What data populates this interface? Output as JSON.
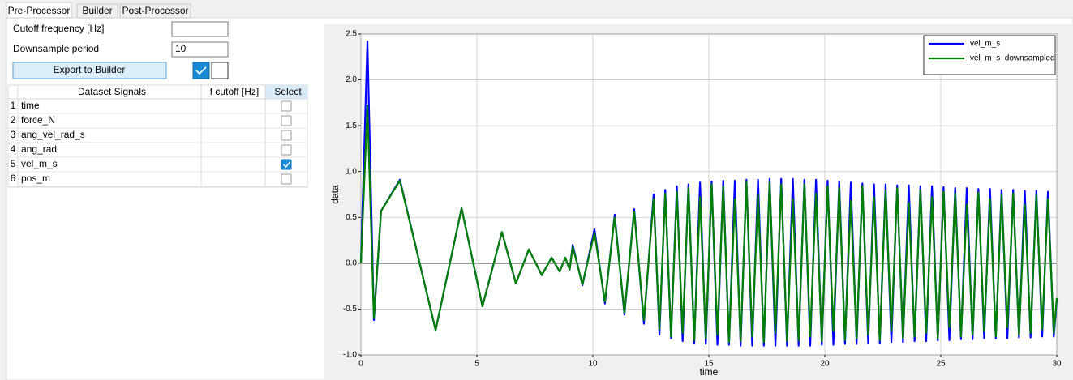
{
  "tabs": [
    "Pre-Processor",
    "Builder",
    "Post-Processor"
  ],
  "form": {
    "cutoff_label": "Cutoff frequency [Hz]",
    "downsample_label": "Downsample period",
    "downsample_value": "10",
    "export_button": "Export to Builder"
  },
  "table": {
    "headers": [
      "Dataset Signals",
      "f cutoff [Hz]",
      "Select"
    ],
    "rows": [
      {
        "index": 1,
        "signal": "time",
        "selected": false
      },
      {
        "index": 2,
        "signal": "force_N",
        "selected": false
      },
      {
        "index": 3,
        "signal": "ang_vel_rad_s",
        "selected": false
      },
      {
        "index": 4,
        "signal": "ang_rad",
        "selected": false
      },
      {
        "index": 5,
        "signal": "vel_m_s",
        "selected": true
      },
      {
        "index": 6,
        "signal": "pos_m",
        "selected": false
      }
    ]
  },
  "chart_data": {
    "type": "line",
    "xlabel": "time",
    "ylabel": "data",
    "xlim": [
      0,
      30
    ],
    "ylim": [
      -1.0,
      2.5
    ],
    "xticks": [
      0,
      5,
      10,
      15,
      20,
      25,
      30
    ],
    "yticks": [
      {
        "value": -1.0,
        "label": "-1.0"
      },
      -0.5,
      {
        "value": 0,
        "label": "0.0"
      },
      0.5,
      {
        "value": 1.0,
        "label": "1.0"
      },
      1.5,
      {
        "value": 2.0,
        "label": "2.0"
      },
      2.5
    ],
    "grid": true,
    "legend": "upper right",
    "x": [
      0,
      0.28,
      0.56,
      0.87,
      1.68,
      3.22,
      4.34,
      5.24,
      6.08,
      6.68,
      7.24,
      7.8,
      8.22,
      8.57,
      8.81,
      9.0,
      9.13,
      9.55,
      10.07,
      10.52,
      10.94,
      11.36,
      11.78,
      12.2,
      12.62,
      12.87,
      13.12,
      13.37,
      13.62,
      13.87,
      14.12,
      14.37,
      14.62,
      14.87,
      15.12,
      15.37,
      15.62,
      15.87,
      16.12,
      16.37,
      16.62,
      16.87,
      17.12,
      17.37,
      17.62,
      17.87,
      18.12,
      18.37,
      18.62,
      18.87,
      19.12,
      19.37,
      19.62,
      19.87,
      20.12,
      20.37,
      20.62,
      20.87,
      21.12,
      21.37,
      21.62,
      21.87,
      22.12,
      22.37,
      22.62,
      22.87,
      23.12,
      23.37,
      23.62,
      23.87,
      24.12,
      24.37,
      24.62,
      24.87,
      25.12,
      25.37,
      25.62,
      25.87,
      26.12,
      26.37,
      26.62,
      26.87,
      27.12,
      27.37,
      27.62,
      27.87,
      28.12,
      28.37,
      28.62,
      28.87,
      29.12,
      29.37,
      29.62,
      29.87,
      30
    ],
    "series": [
      {
        "name": "vel_m_s",
        "color": "#0000ff",
        "values": [
          0,
          2.42,
          -0.62,
          0.57,
          0.91,
          -0.73,
          0.6,
          -0.47,
          0.34,
          -0.22,
          0.15,
          -0.13,
          0.06,
          -0.09,
          0.06,
          -0.07,
          0.2,
          -0.24,
          0.37,
          -0.44,
          0.53,
          -0.56,
          0.59,
          -0.66,
          0.75,
          -0.78,
          0.8,
          -0.82,
          0.84,
          -0.85,
          0.86,
          -0.87,
          0.88,
          -0.88,
          0.89,
          -0.89,
          0.9,
          -0.89,
          0.9,
          -0.9,
          0.91,
          -0.9,
          0.91,
          -0.9,
          0.92,
          -0.9,
          0.92,
          -0.9,
          0.92,
          -0.9,
          0.91,
          -0.9,
          0.91,
          -0.89,
          0.9,
          -0.89,
          0.89,
          -0.88,
          0.88,
          -0.88,
          0.87,
          -0.87,
          0.86,
          -0.87,
          0.86,
          -0.86,
          0.85,
          -0.86,
          0.85,
          -0.85,
          0.84,
          -0.85,
          0.84,
          -0.84,
          0.83,
          -0.84,
          0.82,
          -0.83,
          0.82,
          -0.83,
          0.81,
          -0.82,
          0.81,
          -0.82,
          0.8,
          -0.82,
          0.8,
          -0.81,
          0.79,
          -0.81,
          0.79,
          -0.8,
          0.78,
          -0.8,
          -0.4
        ]
      },
      {
        "name": "vel_m_s_downsampled",
        "color": "#008000",
        "values": [
          0,
          1.72,
          -0.6,
          0.57,
          0.9,
          -0.73,
          0.6,
          -0.47,
          0.34,
          -0.22,
          0.15,
          -0.13,
          0.06,
          -0.09,
          0.06,
          -0.07,
          0.18,
          -0.23,
          0.33,
          -0.42,
          0.5,
          -0.54,
          0.56,
          -0.62,
          0.7,
          -0.72,
          0.76,
          -0.8,
          0.78,
          -0.76,
          0.82,
          -0.84,
          0.72,
          -0.82,
          0.86,
          -0.78,
          0.84,
          -0.86,
          0.7,
          -0.85,
          0.88,
          -0.8,
          0.74,
          -0.86,
          0.88,
          -0.76,
          0.86,
          -0.85,
          0.7,
          -0.84,
          0.86,
          -0.8,
          0.76,
          -0.85,
          0.84,
          -0.74,
          0.82,
          -0.84,
          0.68,
          -0.82,
          0.84,
          -0.78,
          0.72,
          -0.84,
          0.8,
          -0.74,
          0.82,
          -0.82,
          0.66,
          -0.8,
          0.8,
          -0.76,
          0.72,
          -0.82,
          0.78,
          -0.7,
          0.76,
          -0.8,
          0.64,
          -0.78,
          0.77,
          -0.74,
          0.7,
          -0.8,
          0.74,
          -0.7,
          0.76,
          -0.78,
          0.64,
          -0.76,
          0.74,
          -0.72,
          0.7,
          -0.76,
          -0.38
        ]
      }
    ]
  }
}
